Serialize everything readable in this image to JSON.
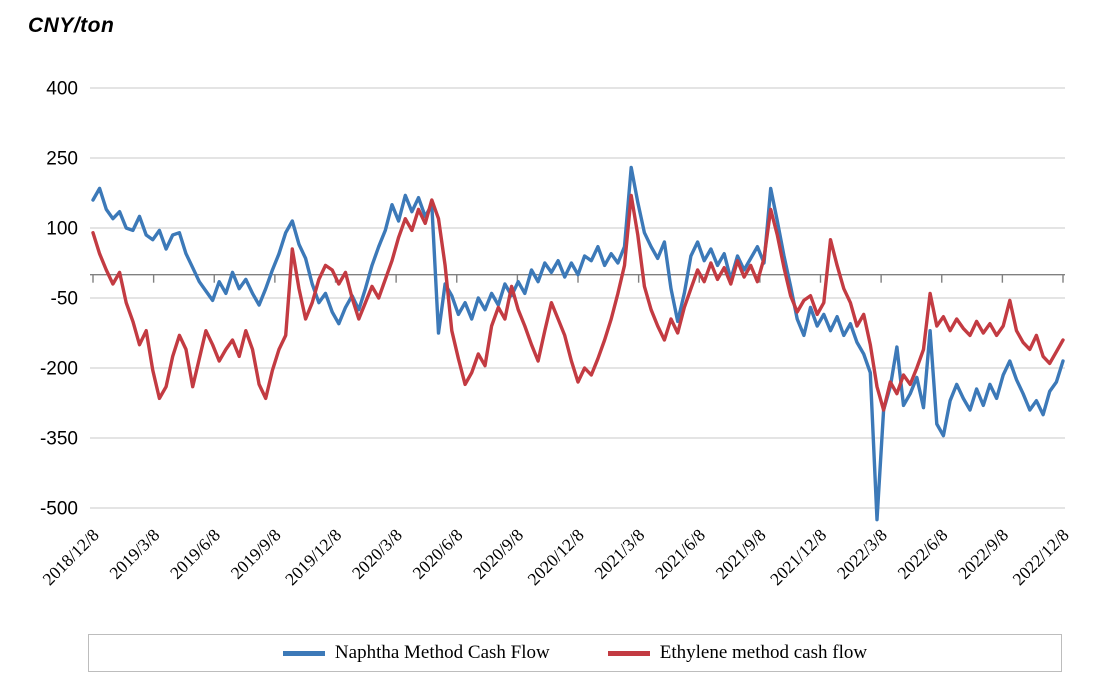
{
  "unit_label": "CNY/ton",
  "chart_data": {
    "type": "line",
    "title": "CNY/ton",
    "ylabel": "CNY/ton",
    "ylim": [
      -500,
      400
    ],
    "y_ticks": [
      400,
      250,
      100,
      -50,
      -200,
      -350,
      -500
    ],
    "x_ticks": [
      "2018/12/8",
      "2019/3/8",
      "2019/6/8",
      "2019/9/8",
      "2019/12/8",
      "2020/3/8",
      "2020/6/8",
      "2020/9/8",
      "2020/12/8",
      "2021/3/8",
      "2021/6/8",
      "2021/9/8",
      "2021/12/8",
      "2022/3/8",
      "2022/6/8",
      "2022/9/8",
      "2022/12/8"
    ],
    "x_start": "2018/12/8",
    "x_end": "2022/12/8",
    "x_frequency": "approx. every 10 days",
    "grid": true,
    "legend_position": "bottom",
    "zero_axis": true,
    "series": [
      {
        "name": "Naphtha Method Cash Flow",
        "color": "#3C79B8",
        "values": [
          160,
          185,
          140,
          120,
          135,
          100,
          95,
          125,
          85,
          75,
          95,
          55,
          85,
          90,
          45,
          15,
          -15,
          -35,
          -55,
          -15,
          -40,
          5,
          -30,
          -10,
          -40,
          -65,
          -30,
          10,
          45,
          90,
          115,
          65,
          35,
          -20,
          -60,
          -40,
          -80,
          -105,
          -70,
          -45,
          -75,
          -30,
          20,
          60,
          95,
          150,
          115,
          170,
          135,
          165,
          125,
          150,
          -125,
          -20,
          -45,
          -85,
          -60,
          -95,
          -50,
          -75,
          -40,
          -65,
          -20,
          -45,
          -15,
          -40,
          10,
          -15,
          25,
          5,
          30,
          -5,
          25,
          0,
          40,
          30,
          60,
          20,
          45,
          25,
          60,
          230,
          155,
          90,
          60,
          35,
          70,
          -30,
          -100,
          -40,
          40,
          70,
          30,
          55,
          20,
          45,
          -10,
          40,
          10,
          35,
          60,
          25,
          185,
          115,
          40,
          -25,
          -95,
          -130,
          -70,
          -110,
          -85,
          -120,
          -90,
          -130,
          -105,
          -145,
          -170,
          -210,
          -525,
          -290,
          -240,
          -155,
          -280,
          -255,
          -220,
          -285,
          -120,
          -320,
          -345,
          -270,
          -235,
          -265,
          -290,
          -245,
          -280,
          -235,
          -265,
          -215,
          -185,
          -225,
          -255,
          -290,
          -270,
          -300,
          -250,
          -230,
          -185
        ]
      },
      {
        "name": "Ethylene method cash flow",
        "color": "#C33B42",
        "values": [
          90,
          45,
          10,
          -20,
          5,
          -60,
          -100,
          -150,
          -120,
          -205,
          -265,
          -240,
          -175,
          -130,
          -160,
          -240,
          -180,
          -120,
          -150,
          -185,
          -160,
          -140,
          -175,
          -120,
          -160,
          -235,
          -265,
          -205,
          -160,
          -130,
          55,
          -30,
          -95,
          -60,
          -10,
          20,
          10,
          -20,
          5,
          -50,
          -95,
          -60,
          -25,
          -50,
          -10,
          30,
          80,
          120,
          95,
          140,
          110,
          160,
          120,
          20,
          -120,
          -180,
          -235,
          -210,
          -170,
          -195,
          -110,
          -70,
          -95,
          -25,
          -75,
          -110,
          -150,
          -185,
          -120,
          -60,
          -95,
          -130,
          -185,
          -230,
          -200,
          -215,
          -180,
          -140,
          -95,
          -40,
          20,
          170,
          85,
          -25,
          -75,
          -110,
          -140,
          -95,
          -125,
          -70,
          -30,
          10,
          -15,
          25,
          -10,
          15,
          -20,
          30,
          -5,
          20,
          -15,
          35,
          140,
          85,
          15,
          -45,
          -80,
          -55,
          -45,
          -85,
          -60,
          75,
          20,
          -30,
          -60,
          -110,
          -85,
          -150,
          -240,
          -290,
          -230,
          -255,
          -215,
          -235,
          -200,
          -160,
          -40,
          -110,
          -90,
          -120,
          -95,
          -115,
          -130,
          -100,
          -125,
          -105,
          -130,
          -110,
          -55,
          -120,
          -145,
          -160,
          -130,
          -175,
          -190,
          -165,
          -140
        ]
      }
    ]
  },
  "colors": {
    "gridline": "#d3d3d3",
    "axis": "#808080",
    "text": "#000000",
    "legend_border": "#bdbdbd",
    "background": "#ffffff"
  }
}
